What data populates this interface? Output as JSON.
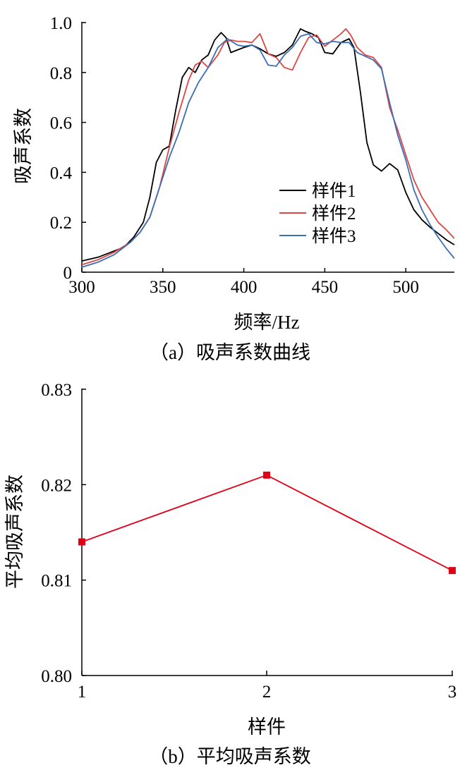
{
  "chart_data": [
    {
      "type": "line",
      "caption": "（a）吸声系数曲线",
      "xlabel": "频率/Hz",
      "ylabel": "吸声系数",
      "xlim": [
        300,
        530
      ],
      "ylim": [
        0,
        1.0
      ],
      "xticks": [
        "300",
        "350",
        "400",
        "450",
        "500"
      ],
      "yticks": [
        "0",
        "0.2",
        "0.4",
        "0.6",
        "0.8",
        "1.0"
      ],
      "grid": false,
      "legend_position": "lower-right",
      "series": [
        {
          "name": "样件1",
          "color": "#000000",
          "x": [
            300,
            310,
            318,
            326,
            332,
            338,
            342,
            346,
            350,
            354,
            358,
            362,
            366,
            370,
            374,
            378,
            382,
            386,
            389,
            392,
            396,
            400,
            405,
            410,
            415,
            420,
            425,
            430,
            435,
            438,
            442,
            446,
            450,
            455,
            460,
            465,
            468,
            472,
            476,
            480,
            485,
            490,
            495,
            500,
            505,
            510,
            515,
            520,
            525,
            530
          ],
          "y": [
            0.045,
            0.06,
            0.08,
            0.1,
            0.14,
            0.2,
            0.3,
            0.44,
            0.49,
            0.505,
            0.65,
            0.78,
            0.82,
            0.8,
            0.85,
            0.87,
            0.93,
            0.96,
            0.94,
            0.88,
            0.89,
            0.9,
            0.91,
            0.895,
            0.875,
            0.865,
            0.88,
            0.91,
            0.975,
            0.965,
            0.955,
            0.94,
            0.88,
            0.875,
            0.92,
            0.935,
            0.9,
            0.72,
            0.52,
            0.43,
            0.405,
            0.435,
            0.41,
            0.32,
            0.25,
            0.21,
            0.18,
            0.155,
            0.13,
            0.11
          ]
        },
        {
          "name": "样件2",
          "color": "#e04545",
          "x": [
            300,
            310,
            320,
            330,
            336,
            342,
            348,
            354,
            360,
            366,
            370,
            374,
            378,
            384,
            388,
            392,
            396,
            400,
            405,
            410,
            415,
            420,
            425,
            430,
            435,
            440,
            445,
            450,
            455,
            460,
            463,
            466,
            470,
            475,
            480,
            485,
            490,
            495,
            500,
            505,
            510,
            515,
            520,
            525,
            530
          ],
          "y": [
            0.03,
            0.05,
            0.08,
            0.12,
            0.16,
            0.22,
            0.34,
            0.5,
            0.64,
            0.77,
            0.83,
            0.845,
            0.82,
            0.87,
            0.92,
            0.93,
            0.925,
            0.925,
            0.92,
            0.955,
            0.875,
            0.86,
            0.82,
            0.81,
            0.88,
            0.94,
            0.95,
            0.905,
            0.93,
            0.955,
            0.975,
            0.95,
            0.9,
            0.87,
            0.86,
            0.82,
            0.66,
            0.57,
            0.47,
            0.37,
            0.3,
            0.25,
            0.2,
            0.17,
            0.135
          ]
        },
        {
          "name": "样件3",
          "color": "#3a6eb5",
          "x": [
            300,
            310,
            320,
            330,
            336,
            342,
            348,
            354,
            360,
            366,
            372,
            378,
            384,
            390,
            396,
            400,
            405,
            410,
            415,
            420,
            425,
            430,
            435,
            440,
            445,
            450,
            455,
            460,
            465,
            470,
            475,
            480,
            485,
            490,
            495,
            500,
            505,
            510,
            515,
            520,
            525,
            530
          ],
          "y": [
            0.02,
            0.04,
            0.07,
            0.12,
            0.16,
            0.22,
            0.34,
            0.46,
            0.56,
            0.68,
            0.76,
            0.82,
            0.9,
            0.935,
            0.91,
            0.905,
            0.91,
            0.89,
            0.83,
            0.825,
            0.87,
            0.9,
            0.945,
            0.955,
            0.92,
            0.915,
            0.925,
            0.92,
            0.92,
            0.88,
            0.865,
            0.85,
            0.815,
            0.68,
            0.55,
            0.45,
            0.33,
            0.25,
            0.19,
            0.14,
            0.095,
            0.055
          ]
        }
      ]
    },
    {
      "type": "line",
      "caption": "（b）平均吸声系数",
      "xlabel": "样件",
      "ylabel": "平均吸声系数",
      "categories": [
        "1",
        "2",
        "3"
      ],
      "ylim": [
        0.8,
        0.83
      ],
      "yticks": [
        "0.80",
        "0.81",
        "0.82",
        "0.83"
      ],
      "grid": false,
      "series": [
        {
          "color": "#e00016",
          "values": [
            0.814,
            0.821,
            0.811
          ]
        }
      ]
    }
  ]
}
